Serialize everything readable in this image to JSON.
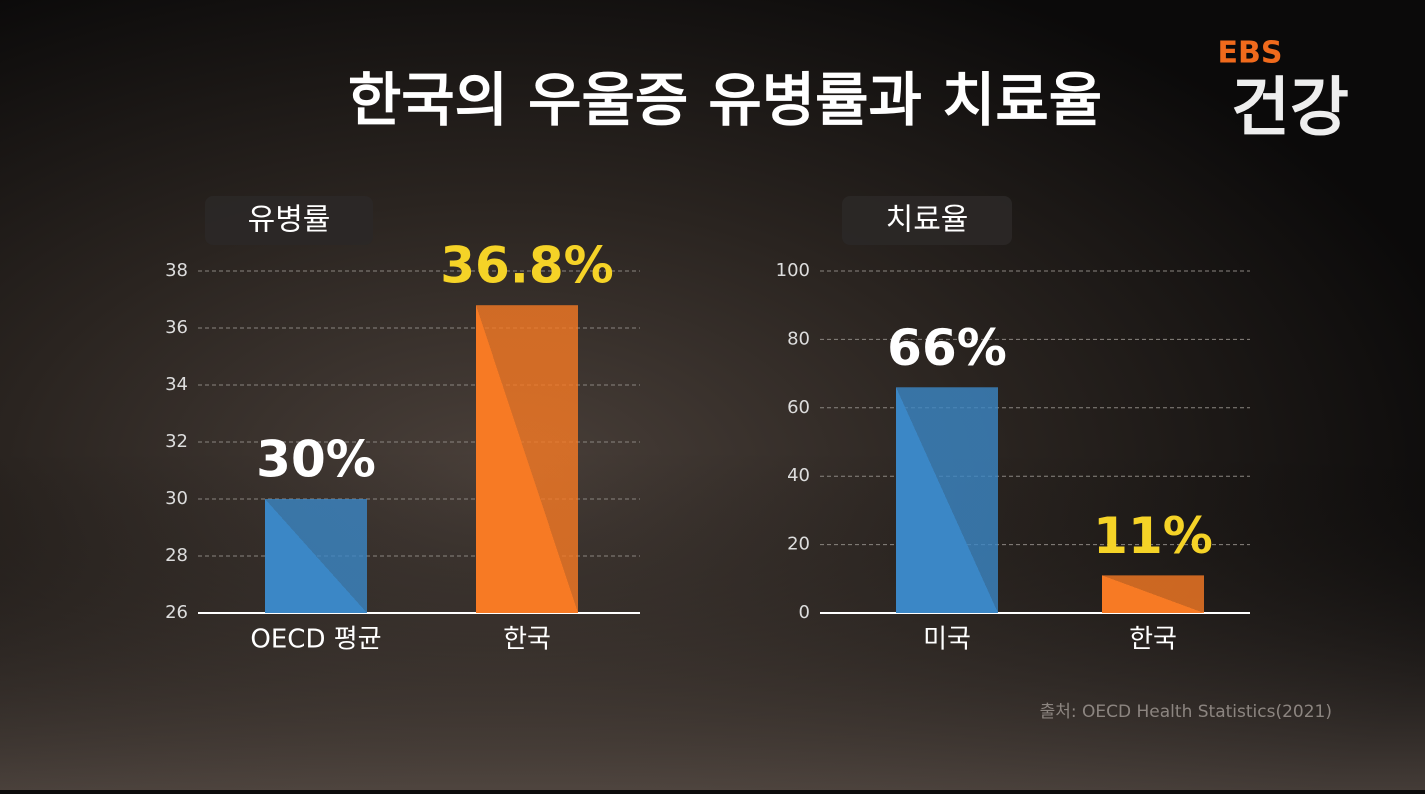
{
  "title": "한국의 우울증 유병률과 치료율",
  "logo": {
    "brand": "EBS",
    "name": "건강"
  },
  "source": "출처: OECD Health Statistics(2021)",
  "chart_data": [
    {
      "type": "bar",
      "title": "유병률",
      "categories": [
        "OECD 평균",
        "한국"
      ],
      "values": [
        30,
        36.8
      ],
      "value_labels": [
        "30%",
        "36.8%"
      ],
      "colors": [
        "#3b87c6",
        "#f77a24"
      ],
      "label_colors": [
        "#ffffff",
        "#f5d327"
      ],
      "ylim": [
        26,
        38
      ],
      "yticks": [
        26,
        28,
        30,
        32,
        34,
        36,
        38
      ],
      "grid": true
    },
    {
      "type": "bar",
      "title": "치료율",
      "categories": [
        "미국",
        "한국"
      ],
      "values": [
        66,
        11
      ],
      "value_labels": [
        "66%",
        "11%"
      ],
      "colors": [
        "#3b87c6",
        "#f77a24"
      ],
      "label_colors": [
        "#ffffff",
        "#f5d327"
      ],
      "ylim": [
        0,
        100
      ],
      "yticks": [
        0,
        20,
        40,
        60,
        80,
        100
      ],
      "grid": true
    }
  ]
}
